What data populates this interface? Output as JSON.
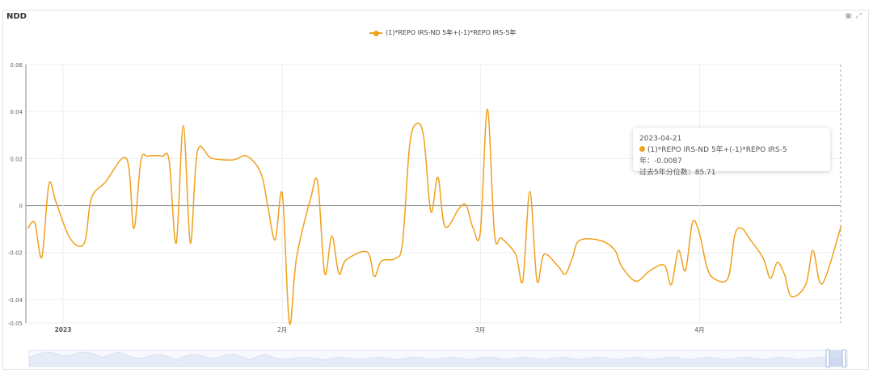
{
  "panel": {
    "title": "NDD",
    "tools": {
      "save_icon": "image-icon",
      "expand_icon": "expand-icon"
    }
  },
  "colors": {
    "series": "#f0a11c",
    "grid": "#eeeeee",
    "zero_line": "#999999"
  },
  "tooltip": {
    "date": "2023-04-21",
    "series_label": "(1)*REPO IRS-ND 5年+(-1)*REPO IRS-5年：",
    "series_value": "-0.0087",
    "percentile_label": "过去5年分位数：",
    "percentile_value": "85.71"
  },
  "chart_data": {
    "type": "line",
    "title": "",
    "xlabel": "",
    "ylabel": "",
    "ylim": [
      -0.05,
      0.06
    ],
    "yticks": [
      "0.06",
      "0.04",
      "0.02",
      "0",
      "-0.02",
      "-0.04",
      "-0.05"
    ],
    "xticks": [
      {
        "date": "2023-01-01",
        "label": "2023"
      },
      {
        "date": "2023-02-01",
        "label": "2月"
      },
      {
        "date": "2023-03-01",
        "label": "3月"
      },
      {
        "date": "2023-04-01",
        "label": "4月"
      }
    ],
    "grid": true,
    "legend": "top-center",
    "series": [
      {
        "name": "(1)*REPO IRS-ND 5年+(-1)*REPO IRS-5年",
        "points": [
          [
            "2022-12-27",
            -0.0098
          ],
          [
            "2022-12-28",
            -0.0074
          ],
          [
            "2022-12-29",
            -0.022
          ],
          [
            "2022-12-30",
            0.009
          ],
          [
            "2022-12-31",
            0.0015
          ],
          [
            "2023-01-02",
            -0.014
          ],
          [
            "2023-01-04",
            -0.016
          ],
          [
            "2023-01-05",
            0.003
          ],
          [
            "2023-01-07",
            0.01
          ],
          [
            "2023-01-10",
            0.0198
          ],
          [
            "2023-01-11",
            -0.0098
          ],
          [
            "2023-01-12",
            0.019
          ],
          [
            "2023-01-13",
            0.021
          ],
          [
            "2023-01-15",
            0.021
          ],
          [
            "2023-01-16",
            0.019
          ],
          [
            "2023-01-17",
            -0.016
          ],
          [
            "2023-01-18",
            0.034
          ],
          [
            "2023-01-19",
            -0.016
          ],
          [
            "2023-01-20",
            0.023
          ],
          [
            "2023-01-22",
            0.0201
          ],
          [
            "2023-01-25",
            0.0194
          ],
          [
            "2023-01-27",
            0.021
          ],
          [
            "2023-01-29",
            0.0136
          ],
          [
            "2023-01-30",
            -0.0012
          ],
          [
            "2023-01-31",
            -0.0146
          ],
          [
            "2023-02-01",
            0.005
          ],
          [
            "2023-02-02",
            -0.05
          ],
          [
            "2023-02-03",
            -0.0225
          ],
          [
            "2023-02-05",
            0.003
          ],
          [
            "2023-02-06",
            0.0098
          ],
          [
            "2023-02-07",
            -0.029
          ],
          [
            "2023-02-08",
            -0.0129
          ],
          [
            "2023-02-09",
            -0.029
          ],
          [
            "2023-02-10",
            -0.0232
          ],
          [
            "2023-02-13",
            -0.0198
          ],
          [
            "2023-02-14",
            -0.0302
          ],
          [
            "2023-02-15",
            -0.0237
          ],
          [
            "2023-02-17",
            -0.0225
          ],
          [
            "2023-02-18",
            -0.0156
          ],
          [
            "2023-02-19",
            0.0256
          ],
          [
            "2023-02-20",
            0.0349
          ],
          [
            "2023-02-21",
            0.029
          ],
          [
            "2023-02-22",
            -0.0026
          ],
          [
            "2023-02-23",
            0.012
          ],
          [
            "2023-02-24",
            -0.009
          ],
          [
            "2023-02-26",
            -0.0012
          ],
          [
            "2023-02-27",
            0.0
          ],
          [
            "2023-02-28",
            -0.0098
          ],
          [
            "2023-03-01",
            -0.0112
          ],
          [
            "2023-03-02",
            0.041
          ],
          [
            "2023-03-03",
            -0.0122
          ],
          [
            "2023-03-04",
            -0.0139
          ],
          [
            "2023-03-06",
            -0.0208
          ],
          [
            "2023-03-07",
            -0.032
          ],
          [
            "2023-03-08",
            0.006
          ],
          [
            "2023-03-09",
            -0.032
          ],
          [
            "2023-03-10",
            -0.0208
          ],
          [
            "2023-03-12",
            -0.0259
          ],
          [
            "2023-03-13",
            -0.0292
          ],
          [
            "2023-03-14",
            -0.0225
          ],
          [
            "2023-03-15",
            -0.0149
          ],
          [
            "2023-03-18",
            -0.0149
          ],
          [
            "2023-03-20",
            -0.019
          ],
          [
            "2023-03-21",
            -0.026
          ],
          [
            "2023-03-23",
            -0.0322
          ],
          [
            "2023-03-25",
            -0.0277
          ],
          [
            "2023-03-27",
            -0.0254
          ],
          [
            "2023-03-28",
            -0.0337
          ],
          [
            "2023-03-29",
            -0.0191
          ],
          [
            "2023-03-30",
            -0.0277
          ],
          [
            "2023-03-31",
            -0.0071
          ],
          [
            "2023-04-01",
            -0.0122
          ],
          [
            "2023-04-02",
            -0.0259
          ],
          [
            "2023-04-03",
            -0.031
          ],
          [
            "2023-04-05",
            -0.031
          ],
          [
            "2023-04-06",
            -0.0122
          ],
          [
            "2023-04-07",
            -0.0098
          ],
          [
            "2023-04-08",
            -0.0139
          ],
          [
            "2023-04-10",
            -0.0225
          ],
          [
            "2023-04-11",
            -0.031
          ],
          [
            "2023-04-12",
            -0.0242
          ],
          [
            "2023-04-13",
            -0.0294
          ],
          [
            "2023-04-14",
            -0.0388
          ],
          [
            "2023-04-16",
            -0.0337
          ],
          [
            "2023-04-17",
            -0.0191
          ],
          [
            "2023-04-18",
            -0.0328
          ],
          [
            "2023-04-19",
            -0.029
          ],
          [
            "2023-04-21",
            -0.0087
          ]
        ]
      }
    ]
  }
}
